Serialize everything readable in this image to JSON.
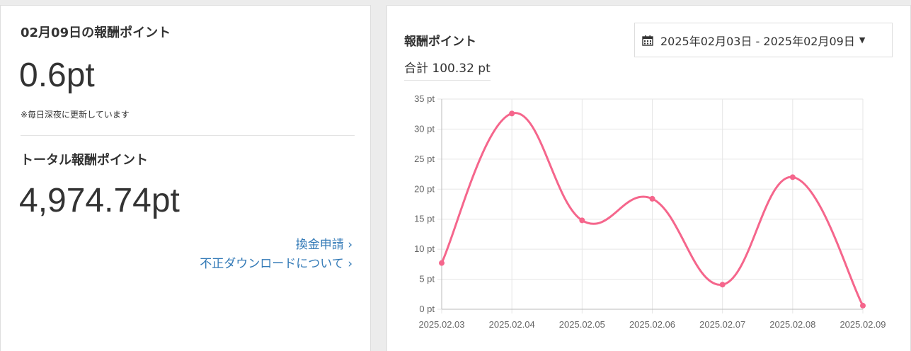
{
  "daily": {
    "title": "02月09日の報酬ポイント",
    "value": "0.6pt",
    "note": "※毎日深夜に更新しています"
  },
  "total": {
    "title": "トータル報酬ポイント",
    "value": "4,974.74pt"
  },
  "links": {
    "withdraw": "換金申請 ›",
    "fraud": "不正ダウンロードについて ›"
  },
  "panel": {
    "title": "報酬ポイント",
    "total_label": "合計 100.32 pt",
    "date_range": "2025年02月03日 - 2025年02月09日",
    "calendar_icon": "calendar-icon",
    "caret_icon": "caret-down-icon"
  },
  "colors": {
    "line": "#f5668c",
    "grid": "#e6e6e6",
    "link": "#337ab7"
  },
  "chart_data": {
    "type": "line",
    "title": "報酬ポイント",
    "categories": [
      "2025.02.03",
      "2025.02.04",
      "2025.02.05",
      "2025.02.06",
      "2025.02.07",
      "2025.02.08",
      "2025.02.09"
    ],
    "series": [
      {
        "name": "報酬ポイント",
        "values": [
          7.7,
          32.6,
          14.8,
          18.4,
          4.1,
          22.0,
          0.6
        ]
      }
    ],
    "ylim": [
      0,
      35
    ],
    "y_ticks": [
      0,
      5,
      10,
      15,
      20,
      25,
      30,
      35
    ],
    "y_tick_suffix": " pt",
    "grid": true,
    "smooth": true
  }
}
